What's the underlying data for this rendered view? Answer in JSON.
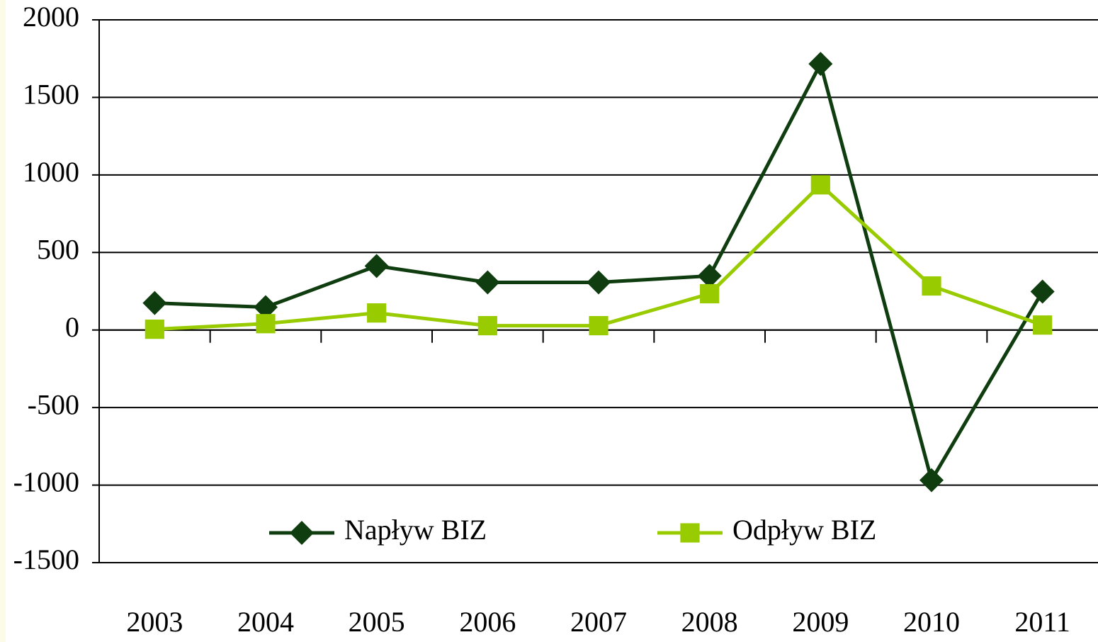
{
  "chart_data": {
    "type": "line",
    "categories": [
      "2003",
      "2004",
      "2005",
      "2006",
      "2007",
      "2008",
      "2009",
      "2010",
      "2011"
    ],
    "series": [
      {
        "name": "Napływ BIZ",
        "color": "#0f3d0f",
        "marker": "diamond",
        "values": [
          174,
          147,
          413,
          307,
          307,
          349,
          1716,
          -968,
          248
        ]
      },
      {
        "name": "Odpływ BIZ",
        "color": "#99cc00",
        "marker": "square",
        "values": [
          5,
          41,
          110,
          28,
          28,
          234,
          936,
          284,
          32
        ]
      }
    ],
    "ylim": [
      -1500,
      2000
    ],
    "yticks": [
      -1500,
      -1000,
      -500,
      0,
      500,
      1000,
      1500,
      2000
    ],
    "grid": true,
    "legend": "bottom"
  }
}
